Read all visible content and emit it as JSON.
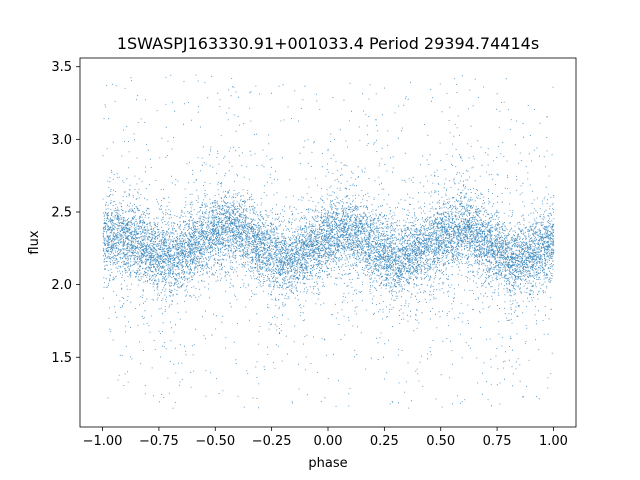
{
  "chart_data": {
    "type": "scatter",
    "title": "1SWASPJ163330.91+001033.4 Period 29394.74414s",
    "xlabel": "phase",
    "ylabel": "flux",
    "xlim": [
      -1.1,
      1.1
    ],
    "ylim": [
      1.02,
      3.56
    ],
    "xticks": [
      -1.0,
      -0.75,
      -0.5,
      -0.25,
      0.0,
      0.25,
      0.5,
      0.75,
      1.0
    ],
    "xtick_labels": [
      "−1.00",
      "−0.75",
      "−0.50",
      "−0.25",
      "0.00",
      "0.25",
      "0.50",
      "0.75",
      "1.00"
    ],
    "yticks": [
      1.5,
      2.0,
      2.5,
      3.0,
      3.5
    ],
    "ytick_labels": [
      "1.5",
      "2.0",
      "2.5",
      "3.0",
      "3.5"
    ],
    "grid": false,
    "marker_color": "#1f77b4",
    "series": [
      {
        "x_range": [
          -1.0,
          1.0
        ],
        "trend": {
          "x": [
            -1.0,
            -0.9,
            -0.8,
            -0.7,
            -0.6,
            -0.5,
            -0.4,
            -0.3,
            -0.2,
            -0.1,
            0.0,
            0.1,
            0.2,
            0.3,
            0.4,
            0.5,
            0.6,
            0.7,
            0.8,
            0.9,
            1.0
          ],
          "y": [
            2.33,
            2.33,
            2.25,
            2.18,
            2.28,
            2.38,
            2.38,
            2.25,
            2.17,
            2.22,
            2.33,
            2.37,
            2.27,
            2.18,
            2.23,
            2.33,
            2.38,
            2.3,
            2.18,
            2.2,
            2.3
          ]
        },
        "scatter_sd": 0.14,
        "outlier_y_range": [
          1.15,
          3.45
        ],
        "point_count": 14000
      }
    ]
  }
}
